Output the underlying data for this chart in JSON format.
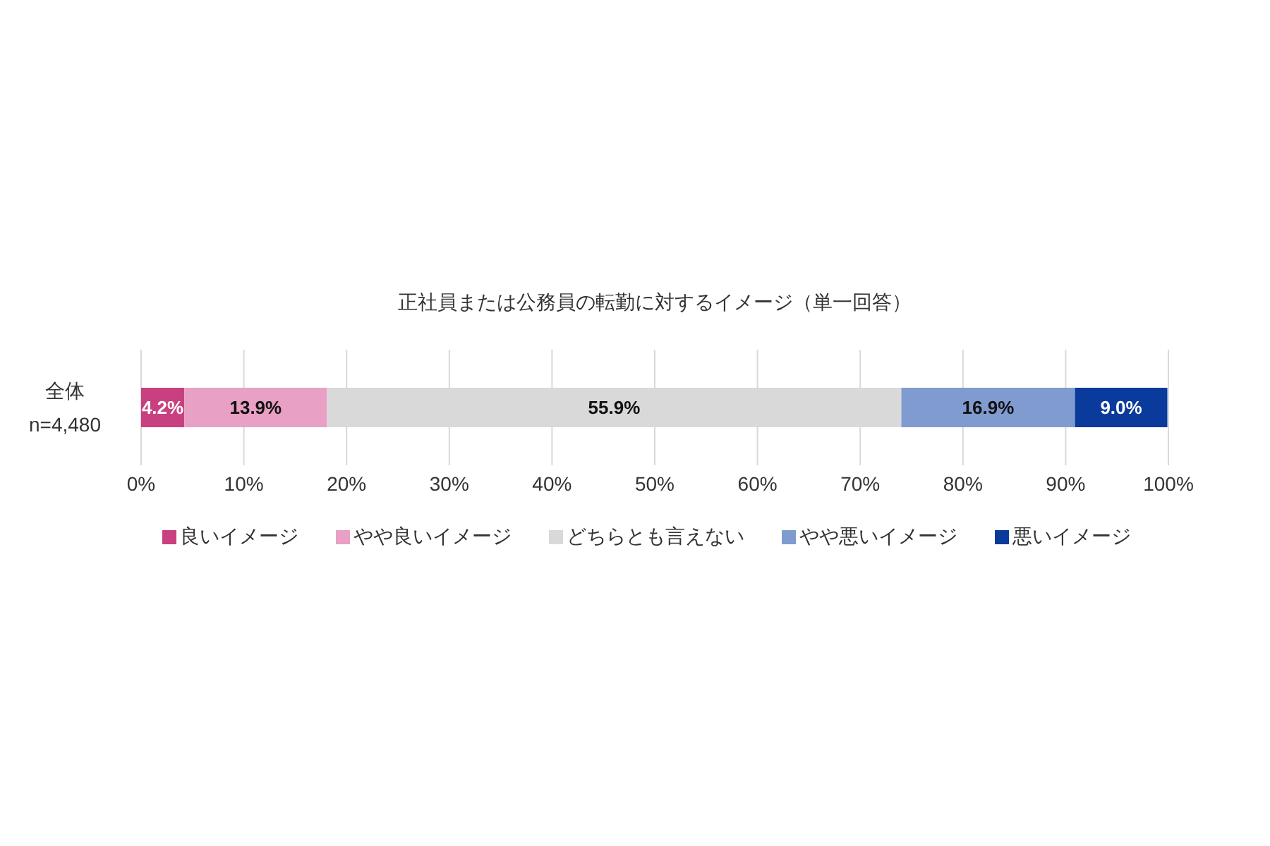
{
  "chart_data": {
    "type": "bar",
    "orientation": "horizontal",
    "stacked": true,
    "title": "正社員または公務員の転勤に対するイメージ（単一回答）",
    "categories": [
      "全体\nn=4,480"
    ],
    "series": [
      {
        "name": "良いイメージ",
        "color": "#c8407f",
        "values": [
          4.2
        ],
        "value_labels": [
          "4.2%"
        ]
      },
      {
        "name": "やや良いイメージ",
        "color": "#e8a0c4",
        "values": [
          13.9
        ],
        "value_labels": [
          "13.9%"
        ]
      },
      {
        "name": "どちらとも言えない",
        "color": "#d9d9d9",
        "values": [
          55.9
        ],
        "value_labels": [
          "55.9%"
        ]
      },
      {
        "name": "やや悪いイメージ",
        "color": "#7f9bd0",
        "values": [
          16.9
        ],
        "value_labels": [
          "16.9%"
        ]
      },
      {
        "name": "悪いイメージ",
        "color": "#0a3a9c",
        "values": [
          9.0
        ],
        "value_labels": [
          "9.0%"
        ]
      }
    ],
    "xlim": [
      0,
      100
    ],
    "xticks": [
      {
        "value": 0,
        "label": "0%"
      },
      {
        "value": 10,
        "label": "10%"
      },
      {
        "value": 20,
        "label": "20%"
      },
      {
        "value": 30,
        "label": "30%"
      },
      {
        "value": 40,
        "label": "40%"
      },
      {
        "value": 50,
        "label": "50%"
      },
      {
        "value": 60,
        "label": "60%"
      },
      {
        "value": 70,
        "label": "70%"
      },
      {
        "value": 80,
        "label": "80%"
      },
      {
        "value": 90,
        "label": "90%"
      },
      {
        "value": 100,
        "label": "100%"
      }
    ],
    "grid": "x",
    "legend": "bottom"
  }
}
